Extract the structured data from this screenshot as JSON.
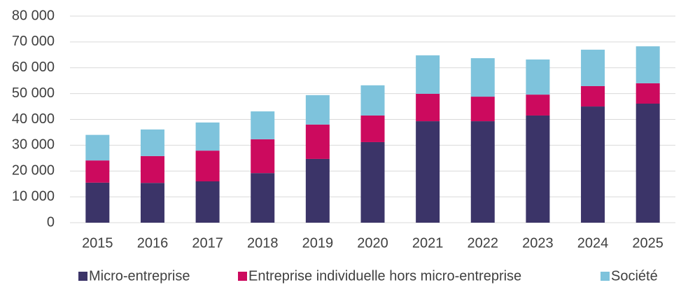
{
  "chart_data": {
    "type": "bar",
    "stacked": true,
    "categories": [
      "2015",
      "2016",
      "2017",
      "2018",
      "2019",
      "2020",
      "2021",
      "2022",
      "2023",
      "2024",
      "2025"
    ],
    "series": [
      {
        "name": "Micro-entreprise",
        "color": "#3b3468",
        "values": [
          15500,
          15400,
          16000,
          19200,
          24700,
          31200,
          39300,
          39300,
          41500,
          45000,
          46100
        ]
      },
      {
        "name": "Entreprise individuelle hors micro-entreprise",
        "color": "#cc0a5e",
        "values": [
          8600,
          10400,
          11900,
          13100,
          13300,
          10300,
          10600,
          9500,
          8100,
          7900,
          7900
        ]
      },
      {
        "name": "Société",
        "color": "#7ec3dc",
        "values": [
          9900,
          10300,
          10900,
          10800,
          11400,
          11700,
          14900,
          14900,
          13600,
          14100,
          14300
        ]
      }
    ],
    "ylim": [
      0,
      80000
    ],
    "yticks": [
      0,
      {
        "value": 10000,
        "label": "10 000"
      },
      {
        "value": 20000,
        "label": "20 000"
      },
      {
        "value": 30000,
        "label": "30 000"
      },
      {
        "value": 40000,
        "label": "40 000"
      },
      {
        "value": 50000,
        "label": "50 000"
      },
      {
        "value": 60000,
        "label": "60 000"
      },
      {
        "value": 70000,
        "label": "70 000"
      },
      {
        "value": 80000,
        "label": "80 000"
      }
    ],
    "grid": true,
    "legend": "bottom"
  }
}
